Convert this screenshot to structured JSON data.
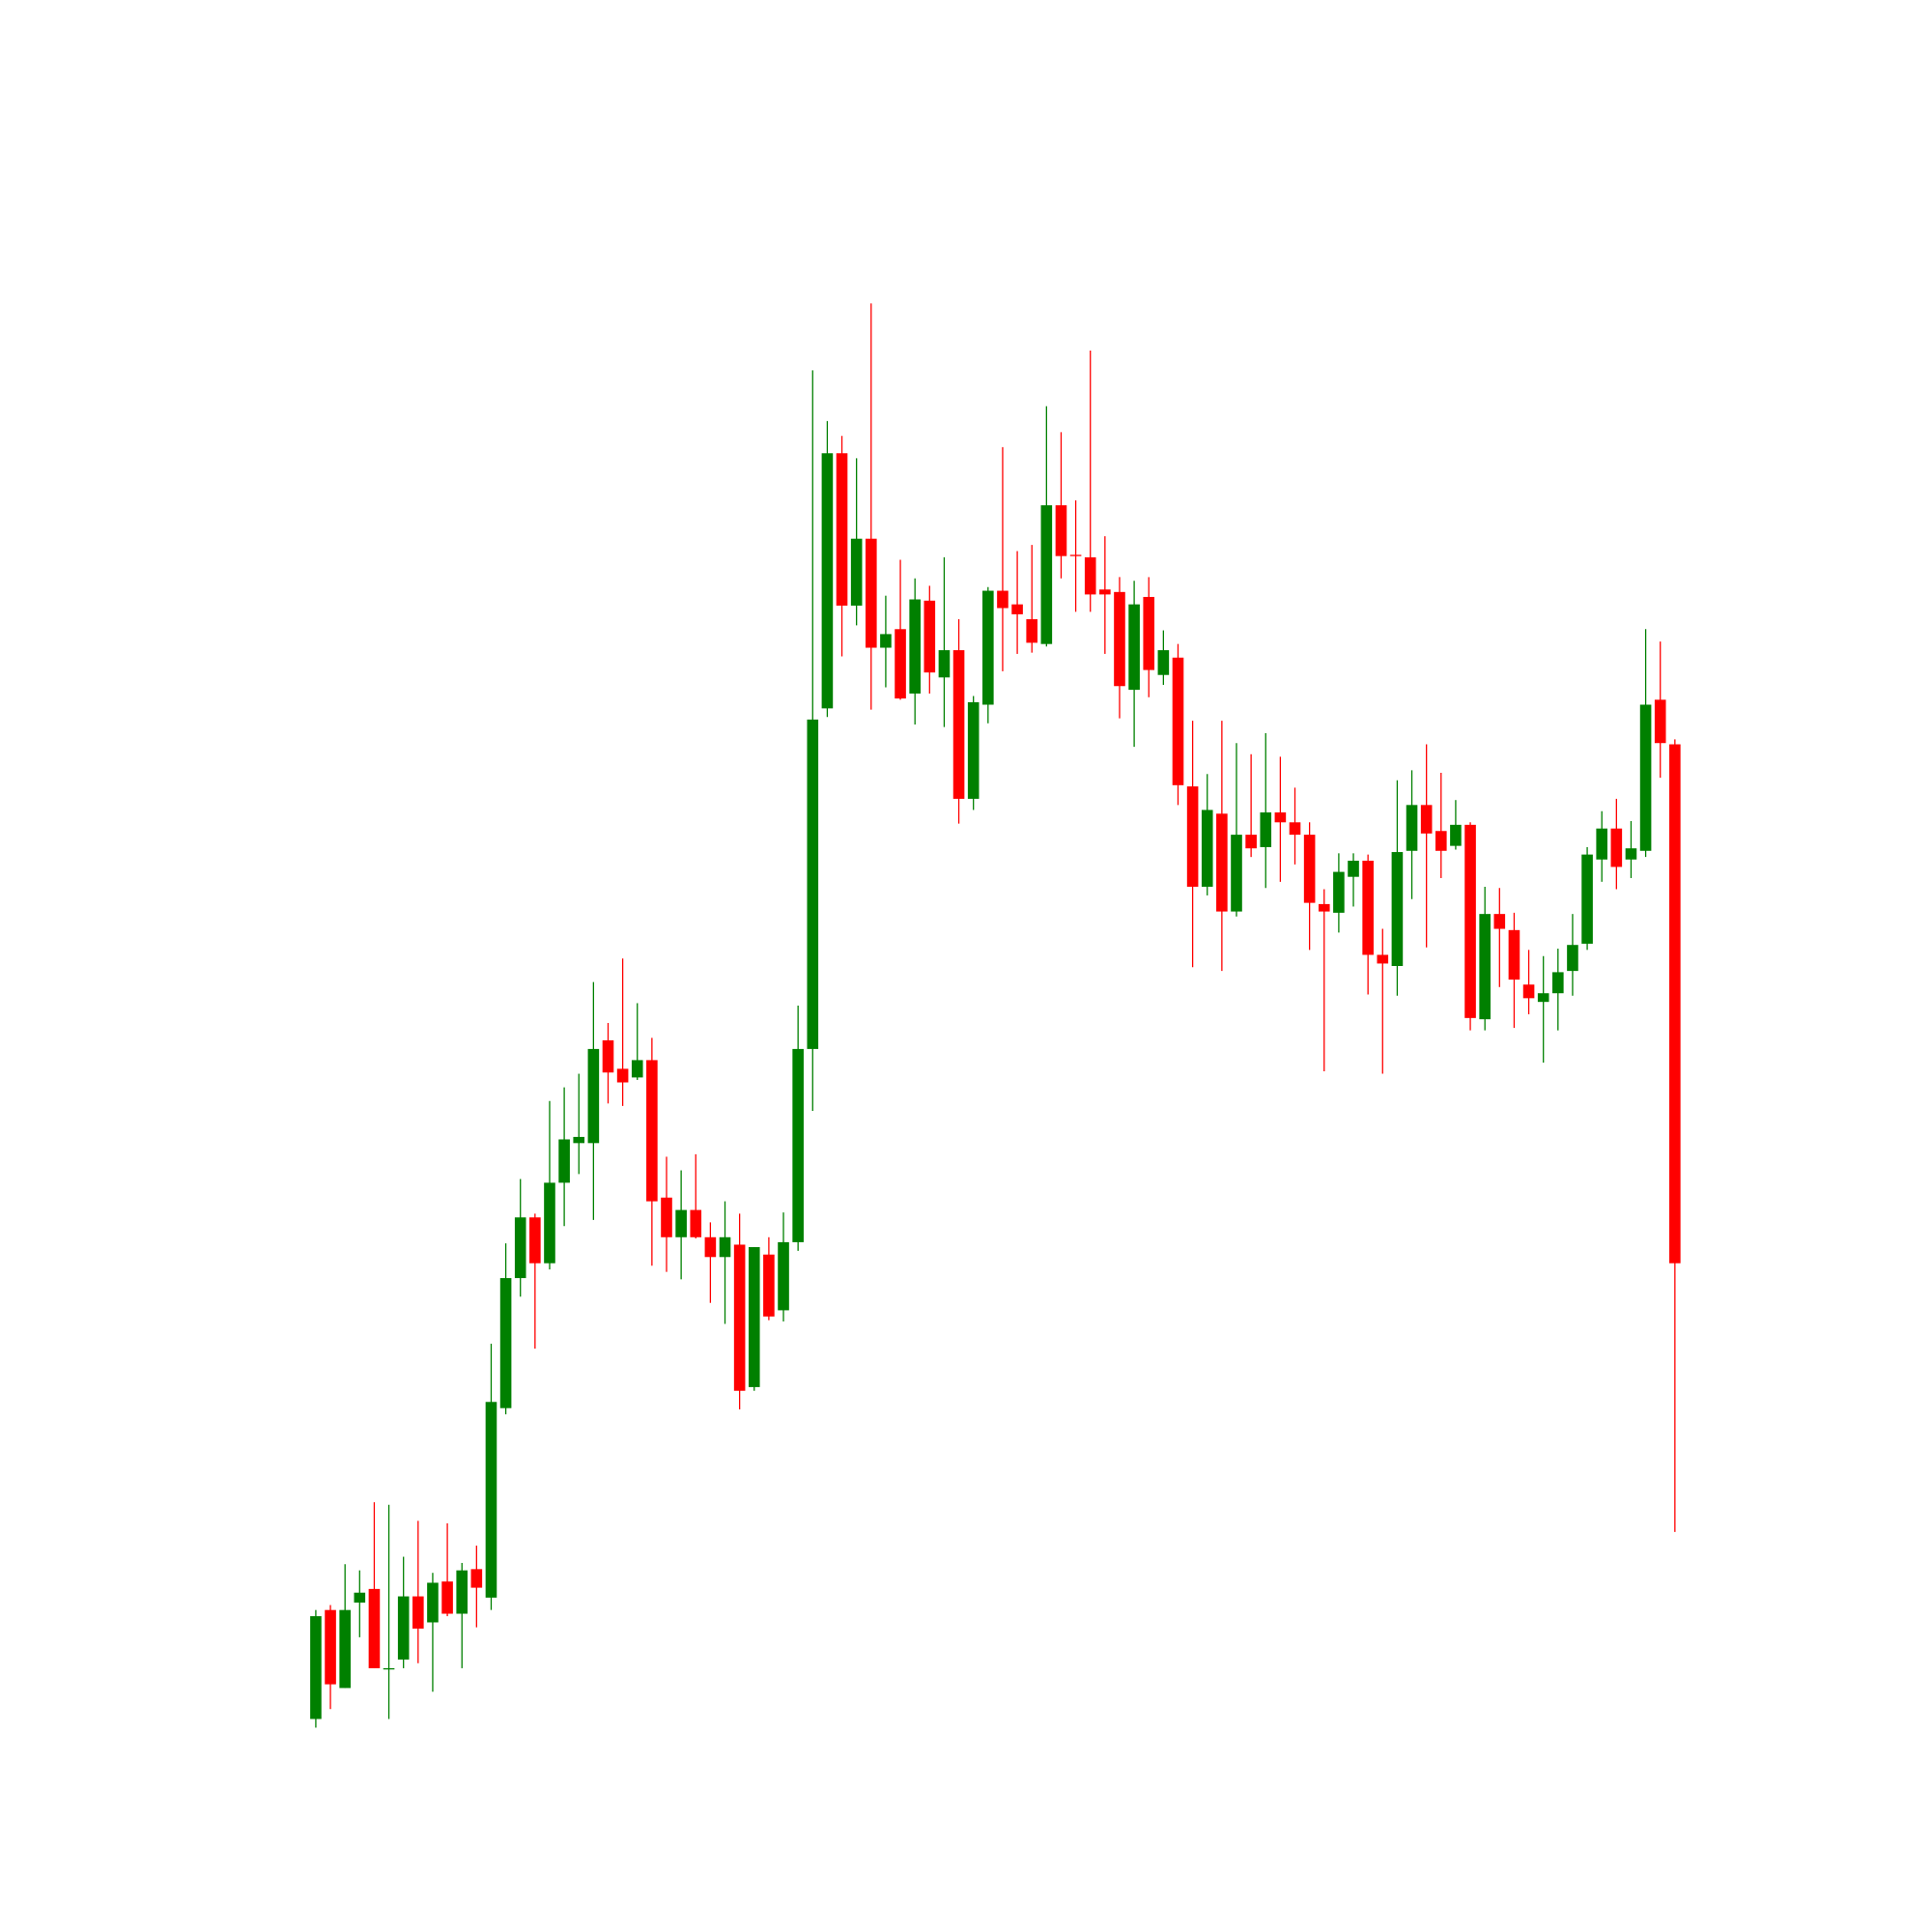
{
  "chart_data": {
    "type": "candlestick",
    "up_color": "#008000",
    "down_color": "#ff0000",
    "ylim": [
      0,
      1560
    ],
    "open": [
      172,
      260,
      197,
      266,
      277,
      212,
      220,
      271,
      250,
      283,
      257,
      293,
      270,
      423,
      528,
      577,
      540,
      605,
      637,
      637,
      720,
      697,
      690,
      704,
      593,
      561,
      583,
      561,
      545,
      555,
      440,
      547,
      502,
      557,
      713,
      988,
      1194,
      1071,
      1125,
      1037,
      1052,
      1000,
      1075,
      1013,
      1035,
      915,
      991,
      1083,
      1072,
      1060,
      1040,
      1152,
      1112,
      1110,
      1084,
      1082,
      1003,
      1078,
      1015,
      1029,
      925,
      844,
      903,
      824,
      886,
      876,
      904,
      896,
      886,
      830,
      823,
      852,
      865,
      789,
      780,
      873,
      910,
      889,
      877,
      894,
      737,
      822,
      809,
      765,
      751,
      758,
      776,
      798,
      866,
      891,
      866,
      873,
      995,
      959
    ],
    "high": [
      260,
      264,
      297,
      292,
      347,
      345,
      303,
      332,
      290,
      330,
      298,
      312,
      475,
      556,
      608,
      580,
      671,
      682,
      693,
      767,
      734,
      786,
      750,
      722,
      626,
      615,
      628,
      573,
      590,
      580,
      553,
      561,
      581,
      748,
      1261,
      1220,
      1208,
      1190,
      1315,
      1079,
      1108,
      1093,
      1087,
      1110,
      1060,
      998,
      1086,
      1199,
      1115,
      1120,
      1232,
      1211,
      1156,
      1277,
      1127,
      1094,
      1091,
      1094,
      1051,
      1040,
      978,
      935,
      978,
      960,
      951,
      968,
      949,
      924,
      896,
      842,
      871,
      871,
      870,
      810,
      930,
      938,
      959,
      936,
      914,
      896,
      844,
      843,
      823,
      793,
      788,
      794,
      822,
      876,
      905,
      915,
      897,
      1052,
      1042,
      963
    ],
    "low": [
      165,
      180,
      197,
      238,
      213,
      172,
      213,
      217,
      194,
      255,
      213,
      246,
      260,
      418,
      513,
      471,
      535,
      570,
      612,
      575,
      669,
      667,
      688,
      538,
      533,
      527,
      560,
      508,
      491,
      422,
      437,
      494,
      493,
      550,
      663,
      981,
      1030,
      1055,
      987,
      1005,
      995,
      975,
      1000,
      973,
      895,
      906,
      976,
      1018,
      1032,
      1033,
      1038,
      1093,
      1066,
      1066,
      1032,
      980,
      957,
      997,
      1007,
      910,
      779,
      837,
      776,
      820,
      868,
      843,
      848,
      862,
      793,
      695,
      807,
      828,
      757,
      693,
      756,
      834,
      795,
      851,
      874,
      728,
      728,
      763,
      730,
      741,
      702,
      728,
      756,
      793,
      848,
      842,
      851,
      868,
      932,
      323
    ],
    "close": [
      255,
      200,
      260,
      274,
      213,
      213,
      271,
      245,
      282,
      257,
      292,
      278,
      428,
      528,
      577,
      540,
      605,
      640,
      642,
      713,
      694,
      686,
      704,
      590,
      561,
      583,
      561,
      545,
      561,
      437,
      553,
      497,
      557,
      713,
      979,
      1194,
      1071,
      1125,
      1037,
      1048,
      996,
      1076,
      1017,
      1035,
      915,
      993,
      1083,
      1069,
      1064,
      1041,
      1152,
      1111,
      1111,
      1080,
      1080,
      1006,
      1072,
      1019,
      1035,
      926,
      844,
      906,
      824,
      886,
      875,
      904,
      896,
      886,
      831,
      824,
      856,
      865,
      789,
      782,
      872,
      910,
      887,
      873,
      894,
      738,
      822,
      810,
      769,
      754,
      758,
      775,
      797,
      870,
      891,
      860,
      875,
      991,
      960,
      540
    ]
  }
}
